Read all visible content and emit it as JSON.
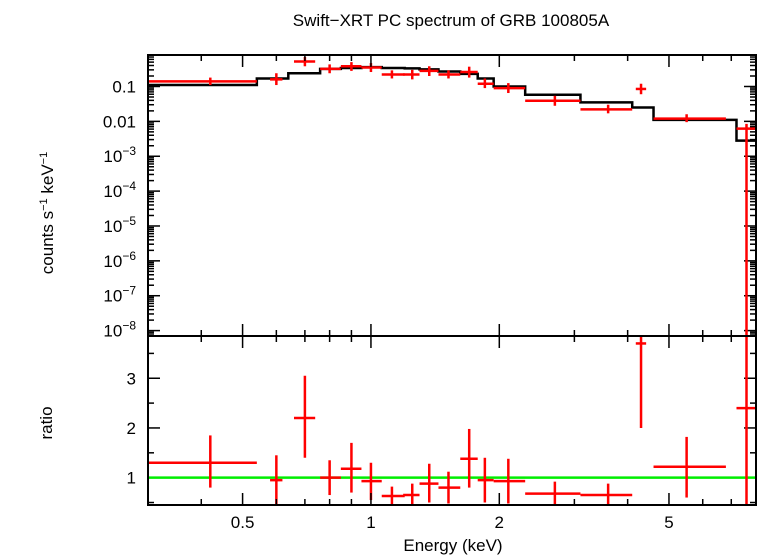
{
  "chart_data": [
    {
      "type": "scatter",
      "title": "Swift−XRT PC spectrum of GRB 100805A",
      "ylabel_parts": {
        "a": "counts s",
        "b": "−1",
        "c": " keV",
        "d": "−1"
      },
      "xscale": "log",
      "yscale": "log",
      "xlim": [
        0.3,
        8.0
      ],
      "ylim": [
        7e-09,
        0.8
      ],
      "y_ticks": [
        {
          "m": "0.1",
          "v": 0.1
        },
        {
          "m": "0.01",
          "v": 0.01
        },
        {
          "m": "10",
          "e": "−3",
          "v": 0.001
        },
        {
          "m": "10",
          "e": "−4",
          "v": 0.0001
        },
        {
          "m": "10",
          "e": "−5",
          "v": 1e-05
        },
        {
          "m": "10",
          "e": "−6",
          "v": 1e-06
        },
        {
          "m": "10",
          "e": "−7",
          "v": 1e-07
        },
        {
          "m": "10",
          "e": "−8",
          "v": 1e-08
        }
      ],
      "series": [
        {
          "color": "#ff0000",
          "points": [
            {
              "x": 0.42,
              "xlo": 0.3,
              "xhi": 0.54,
              "y": 0.14,
              "ylo": 0.11,
              "yhi": 0.18
            },
            {
              "x": 0.6,
              "xlo": 0.58,
              "xhi": 0.62,
              "y": 0.16,
              "ylo": 0.11,
              "yhi": 0.24
            },
            {
              "x": 0.7,
              "xlo": 0.66,
              "xhi": 0.74,
              "y": 0.52,
              "ylo": 0.38,
              "yhi": 0.7
            },
            {
              "x": 0.8,
              "xlo": 0.76,
              "xhi": 0.85,
              "y": 0.32,
              "ylo": 0.24,
              "yhi": 0.43
            },
            {
              "x": 0.9,
              "xlo": 0.85,
              "xhi": 0.95,
              "y": 0.38,
              "ylo": 0.28,
              "yhi": 0.5
            },
            {
              "x": 1.0,
              "xlo": 0.95,
              "xhi": 1.06,
              "y": 0.35,
              "ylo": 0.26,
              "yhi": 0.47
            },
            {
              "x": 1.12,
              "xlo": 1.06,
              "xhi": 1.2,
              "y": 0.22,
              "ylo": 0.17,
              "yhi": 0.29
            },
            {
              "x": 1.25,
              "xlo": 1.19,
              "xhi": 1.3,
              "y": 0.22,
              "ylo": 0.16,
              "yhi": 0.3
            },
            {
              "x": 1.37,
              "xlo": 1.3,
              "xhi": 1.44,
              "y": 0.28,
              "ylo": 0.2,
              "yhi": 0.38
            },
            {
              "x": 1.52,
              "xlo": 1.44,
              "xhi": 1.62,
              "y": 0.22,
              "ylo": 0.17,
              "yhi": 0.29
            },
            {
              "x": 1.7,
              "xlo": 1.62,
              "xhi": 1.78,
              "y": 0.26,
              "ylo": 0.18,
              "yhi": 0.37
            },
            {
              "x": 1.85,
              "xlo": 1.78,
              "xhi": 1.94,
              "y": 0.12,
              "ylo": 0.09,
              "yhi": 0.17
            },
            {
              "x": 2.1,
              "xlo": 1.94,
              "xhi": 2.3,
              "y": 0.09,
              "ylo": 0.065,
              "yhi": 0.125
            },
            {
              "x": 2.7,
              "xlo": 2.3,
              "xhi": 3.1,
              "y": 0.039,
              "ylo": 0.028,
              "yhi": 0.054
            },
            {
              "x": 3.6,
              "xlo": 3.1,
              "xhi": 4.1,
              "y": 0.022,
              "ylo": 0.017,
              "yhi": 0.03
            },
            {
              "x": 4.3,
              "xlo": 4.18,
              "xhi": 4.42,
              "y": 0.085,
              "ylo": 0.06,
              "yhi": 0.12
            },
            {
              "x": 5.5,
              "xlo": 4.6,
              "xhi": 6.8,
              "y": 0.012,
              "ylo": 0.0095,
              "yhi": 0.016
            },
            {
              "x": 7.6,
              "xlo": 7.2,
              "xhi": 8.0,
              "y": 0.0062,
              "ylo": 7e-09,
              "yhi": 0.0085
            }
          ]
        },
        {
          "color": "#000000",
          "type": "step",
          "steps": [
            {
              "xlo": 0.3,
              "xhi": 0.54,
              "y": 0.11
            },
            {
              "xlo": 0.54,
              "xhi": 0.64,
              "y": 0.17
            },
            {
              "xlo": 0.64,
              "xhi": 0.76,
              "y": 0.24
            },
            {
              "xlo": 0.76,
              "xhi": 0.85,
              "y": 0.32
            },
            {
              "xlo": 0.85,
              "xhi": 0.95,
              "y": 0.34
            },
            {
              "xlo": 0.95,
              "xhi": 1.06,
              "y": 0.36
            },
            {
              "xlo": 1.06,
              "xhi": 1.2,
              "y": 0.34
            },
            {
              "xlo": 1.2,
              "xhi": 1.3,
              "y": 0.33
            },
            {
              "xlo": 1.3,
              "xhi": 1.44,
              "y": 0.31
            },
            {
              "xlo": 1.44,
              "xhi": 1.62,
              "y": 0.27
            },
            {
              "xlo": 1.62,
              "xhi": 1.78,
              "y": 0.23
            },
            {
              "xlo": 1.78,
              "xhi": 1.94,
              "y": 0.17
            },
            {
              "xlo": 1.94,
              "xhi": 2.3,
              "y": 0.1
            },
            {
              "xlo": 2.3,
              "xhi": 3.1,
              "y": 0.058
            },
            {
              "xlo": 3.1,
              "xhi": 4.1,
              "y": 0.035
            },
            {
              "xlo": 4.1,
              "xhi": 4.6,
              "y": 0.025
            },
            {
              "xlo": 4.6,
              "xhi": 7.2,
              "y": 0.011
            },
            {
              "xlo": 7.2,
              "xhi": 8.0,
              "y": 0.0028
            }
          ]
        }
      ]
    },
    {
      "type": "scatter",
      "ylabel": "ratio",
      "xlabel": "Energy (keV)",
      "xscale": "log",
      "xlim": [
        0.3,
        8.0
      ],
      "ylim": [
        0.45,
        3.85
      ],
      "x_ticks": [
        {
          "label": "0.5",
          "v": 0.5
        },
        {
          "label": "1",
          "v": 1
        },
        {
          "label": "2",
          "v": 2
        },
        {
          "label": "5",
          "v": 5
        }
      ],
      "y_ticks": [
        {
          "label": "1",
          "v": 1
        },
        {
          "label": "2",
          "v": 2
        },
        {
          "label": "3",
          "v": 3
        }
      ],
      "reference_line": {
        "y": 1,
        "color": "#00ee00"
      },
      "series": [
        {
          "color": "#ff0000",
          "points": [
            {
              "x": 0.42,
              "xlo": 0.3,
              "xhi": 0.54,
              "y": 1.3,
              "ylo": 0.8,
              "yhi": 1.85
            },
            {
              "x": 0.6,
              "xlo": 0.58,
              "xhi": 0.62,
              "y": 0.95,
              "ylo": 0.45,
              "yhi": 1.45
            },
            {
              "x": 0.7,
              "xlo": 0.66,
              "xhi": 0.74,
              "y": 2.2,
              "ylo": 1.4,
              "yhi": 3.05
            },
            {
              "x": 0.8,
              "xlo": 0.76,
              "xhi": 0.85,
              "y": 1.0,
              "ylo": 0.65,
              "yhi": 1.35
            },
            {
              "x": 0.9,
              "xlo": 0.85,
              "xhi": 0.95,
              "y": 1.18,
              "ylo": 0.7,
              "yhi": 1.7
            },
            {
              "x": 1.0,
              "xlo": 0.95,
              "xhi": 1.06,
              "y": 0.93,
              "ylo": 0.55,
              "yhi": 1.3
            },
            {
              "x": 1.12,
              "xlo": 1.06,
              "xhi": 1.2,
              "y": 0.63,
              "ylo": 0.45,
              "yhi": 0.82
            },
            {
              "x": 1.25,
              "xlo": 1.19,
              "xhi": 1.3,
              "y": 0.65,
              "ylo": 0.45,
              "yhi": 0.88
            },
            {
              "x": 1.37,
              "xlo": 1.3,
              "xhi": 1.44,
              "y": 0.88,
              "ylo": 0.5,
              "yhi": 1.28
            },
            {
              "x": 1.52,
              "xlo": 1.44,
              "xhi": 1.62,
              "y": 0.8,
              "ylo": 0.48,
              "yhi": 1.12
            },
            {
              "x": 1.7,
              "xlo": 1.62,
              "xhi": 1.78,
              "y": 1.38,
              "ylo": 0.8,
              "yhi": 1.98
            },
            {
              "x": 1.85,
              "xlo": 1.78,
              "xhi": 1.94,
              "y": 0.95,
              "ylo": 0.5,
              "yhi": 1.4
            },
            {
              "x": 2.1,
              "xlo": 1.94,
              "xhi": 2.3,
              "y": 0.93,
              "ylo": 0.48,
              "yhi": 1.38
            },
            {
              "x": 2.7,
              "xlo": 2.3,
              "xhi": 3.1,
              "y": 0.68,
              "ylo": 0.45,
              "yhi": 0.92
            },
            {
              "x": 3.6,
              "xlo": 3.1,
              "xhi": 4.1,
              "y": 0.65,
              "ylo": 0.45,
              "yhi": 0.88
            },
            {
              "x": 4.3,
              "xlo": 4.18,
              "xhi": 4.42,
              "y": 3.7,
              "ylo": 2.0,
              "yhi": 3.85
            },
            {
              "x": 5.5,
              "xlo": 4.6,
              "xhi": 6.8,
              "y": 1.22,
              "ylo": 0.6,
              "yhi": 1.82
            },
            {
              "x": 7.6,
              "xlo": 7.2,
              "xhi": 8.0,
              "y": 2.4,
              "ylo": 0.45,
              "yhi": 3.85
            }
          ]
        }
      ]
    }
  ]
}
